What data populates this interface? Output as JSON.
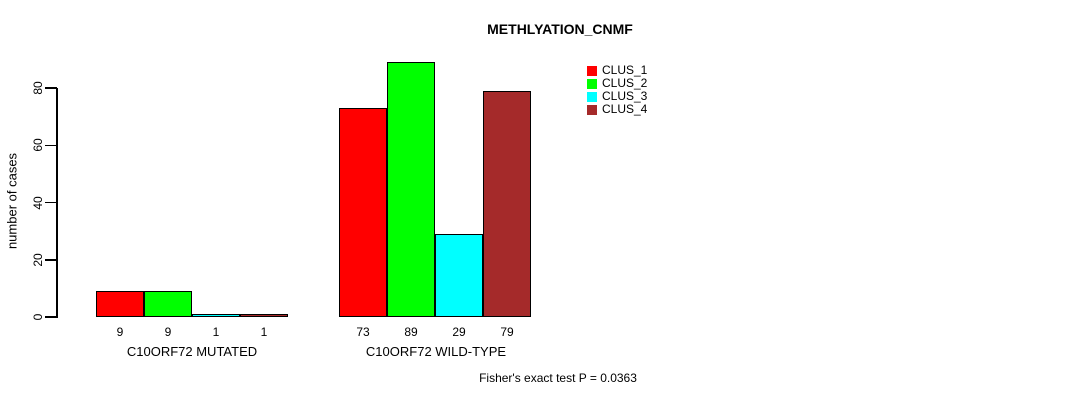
{
  "chart_data": {
    "type": "bar",
    "title": "METHLYATION_CNMF",
    "ylabel": "number of cases",
    "xlabel": "",
    "ylim": [
      0,
      80
    ],
    "yticks": [
      0,
      20,
      40,
      60,
      80
    ],
    "grid": false,
    "legend_position": "top-right",
    "categories": [
      "C10ORF72 MUTATED",
      "C10ORF72 WILD-TYPE"
    ],
    "series": [
      {
        "name": "CLUS_1",
        "color": "#ff0000",
        "values": [
          9,
          73
        ]
      },
      {
        "name": "CLUS_2",
        "color": "#00ff00",
        "values": [
          9,
          89
        ]
      },
      {
        "name": "CLUS_3",
        "color": "#00ffff",
        "values": [
          1,
          29
        ]
      },
      {
        "name": "CLUS_4",
        "color": "#a52a2a",
        "values": [
          1,
          79
        ]
      }
    ],
    "bar_value_labels_shown": true,
    "annotation": "Fisher's exact test P = 0.0363"
  }
}
